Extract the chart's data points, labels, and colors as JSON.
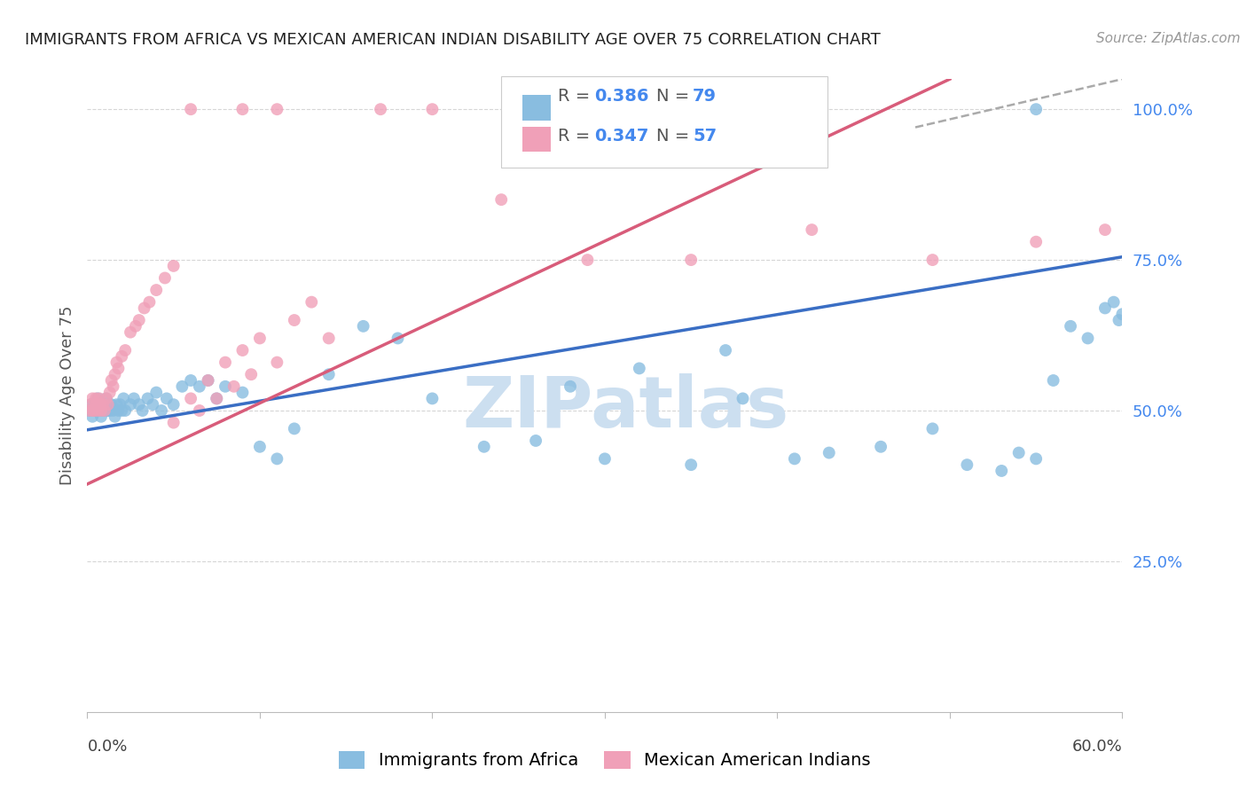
{
  "title": "IMMIGRANTS FROM AFRICA VS MEXICAN AMERICAN INDIAN DISABILITY AGE OVER 75 CORRELATION CHART",
  "source": "Source: ZipAtlas.com",
  "ylabel": "Disability Age Over 75",
  "xlim": [
    0.0,
    0.6
  ],
  "ylim": [
    0.0,
    1.05
  ],
  "ytick_positions": [
    0.25,
    0.5,
    0.75,
    1.0
  ],
  "ytick_labels": [
    "25.0%",
    "50.0%",
    "75.0%",
    "100.0%"
  ],
  "grid_color": "#cccccc",
  "background_color": "#ffffff",
  "blue_R": "0.386",
  "blue_N": "79",
  "pink_R": "0.347",
  "pink_N": "57",
  "blue_color": "#89bde0",
  "pink_color": "#f0a0b8",
  "blue_line_color": "#3a6ec4",
  "pink_line_color": "#d85c7a",
  "dashed_color": "#aaaaaa",
  "legend_val_color": "#4488ee",
  "blue_x": [
    0.001,
    0.002,
    0.003,
    0.003,
    0.004,
    0.004,
    0.005,
    0.005,
    0.006,
    0.006,
    0.007,
    0.007,
    0.008,
    0.008,
    0.009,
    0.009,
    0.01,
    0.01,
    0.011,
    0.011,
    0.012,
    0.013,
    0.014,
    0.015,
    0.016,
    0.017,
    0.018,
    0.019,
    0.02,
    0.021,
    0.022,
    0.025,
    0.027,
    0.03,
    0.032,
    0.035,
    0.038,
    0.04,
    0.043,
    0.046,
    0.05,
    0.055,
    0.06,
    0.065,
    0.07,
    0.075,
    0.08,
    0.09,
    0.1,
    0.11,
    0.12,
    0.14,
    0.16,
    0.18,
    0.2,
    0.23,
    0.26,
    0.3,
    0.35,
    0.38,
    0.41,
    0.43,
    0.46,
    0.49,
    0.51,
    0.53,
    0.54,
    0.55,
    0.56,
    0.57,
    0.58,
    0.59,
    0.595,
    0.598,
    0.6,
    0.28,
    0.32,
    0.37,
    0.55
  ],
  "blue_y": [
    0.5,
    0.51,
    0.49,
    0.5,
    0.51,
    0.5,
    0.5,
    0.51,
    0.5,
    0.52,
    0.5,
    0.51,
    0.5,
    0.49,
    0.51,
    0.5,
    0.5,
    0.51,
    0.5,
    0.52,
    0.5,
    0.5,
    0.51,
    0.5,
    0.49,
    0.51,
    0.5,
    0.51,
    0.5,
    0.52,
    0.5,
    0.51,
    0.52,
    0.51,
    0.5,
    0.52,
    0.51,
    0.53,
    0.5,
    0.52,
    0.51,
    0.54,
    0.55,
    0.54,
    0.55,
    0.52,
    0.54,
    0.53,
    0.44,
    0.42,
    0.47,
    0.56,
    0.64,
    0.62,
    0.52,
    0.44,
    0.45,
    0.42,
    0.41,
    0.52,
    0.42,
    0.43,
    0.44,
    0.47,
    0.41,
    0.4,
    0.43,
    0.42,
    0.55,
    0.64,
    0.62,
    0.67,
    0.68,
    0.65,
    0.66,
    0.54,
    0.57,
    0.6,
    1.0
  ],
  "pink_x": [
    0.001,
    0.002,
    0.003,
    0.003,
    0.004,
    0.005,
    0.005,
    0.006,
    0.007,
    0.007,
    0.008,
    0.009,
    0.01,
    0.011,
    0.012,
    0.013,
    0.014,
    0.015,
    0.016,
    0.017,
    0.018,
    0.02,
    0.022,
    0.025,
    0.028,
    0.03,
    0.033,
    0.036,
    0.04,
    0.045,
    0.05,
    0.06,
    0.07,
    0.08,
    0.09,
    0.1,
    0.12,
    0.13,
    0.05,
    0.065,
    0.075,
    0.085,
    0.095,
    0.11,
    0.14,
    0.06,
    0.09,
    0.11,
    0.17,
    0.2,
    0.24,
    0.29,
    0.35,
    0.42,
    0.49,
    0.55,
    0.59
  ],
  "pink_y": [
    0.5,
    0.51,
    0.5,
    0.52,
    0.5,
    0.51,
    0.52,
    0.5,
    0.51,
    0.52,
    0.5,
    0.51,
    0.5,
    0.52,
    0.51,
    0.53,
    0.55,
    0.54,
    0.56,
    0.58,
    0.57,
    0.59,
    0.6,
    0.63,
    0.64,
    0.65,
    0.67,
    0.68,
    0.7,
    0.72,
    0.74,
    0.52,
    0.55,
    0.58,
    0.6,
    0.62,
    0.65,
    0.68,
    0.48,
    0.5,
    0.52,
    0.54,
    0.56,
    0.58,
    0.62,
    1.0,
    1.0,
    1.0,
    1.0,
    1.0,
    0.85,
    0.75,
    0.75,
    0.8,
    0.75,
    0.78,
    0.8
  ],
  "blue_line": [
    0.0,
    0.6,
    0.468,
    0.755
  ],
  "pink_line_solid": [
    0.0,
    0.5,
    0.378,
    1.05
  ],
  "pink_line_dashed": [
    0.48,
    0.6,
    0.97,
    1.05
  ],
  "watermark": "ZIPatlas",
  "watermark_color": "#ccdff0",
  "title_fontsize": 13,
  "source_fontsize": 11,
  "ylabel_fontsize": 13,
  "tick_fontsize": 13,
  "legend_fontsize": 14,
  "scatter_size": 100
}
